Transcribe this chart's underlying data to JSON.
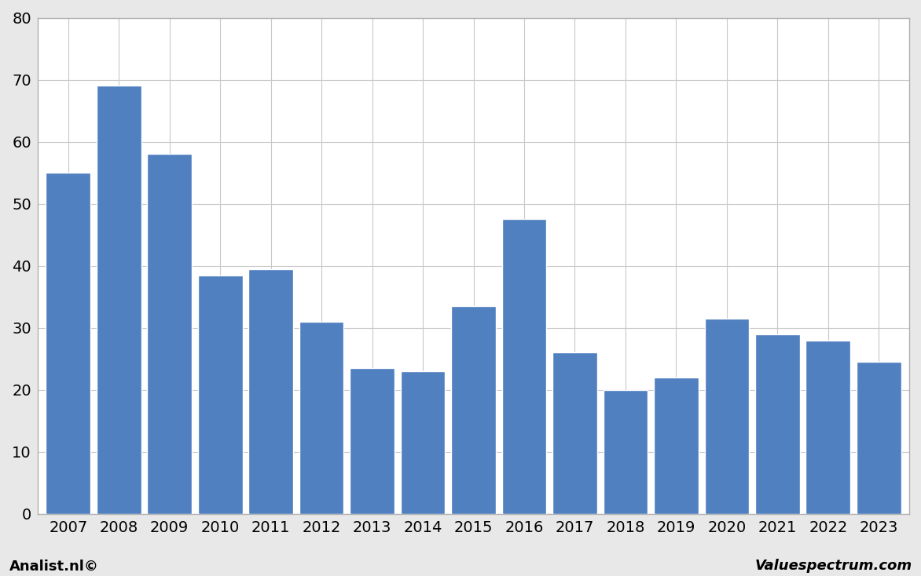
{
  "categories": [
    "2007",
    "2008",
    "2009",
    "2010",
    "2011",
    "2012",
    "2013",
    "2014",
    "2015",
    "2016",
    "2017",
    "2018",
    "2019",
    "2020",
    "2021",
    "2022",
    "2023"
  ],
  "values": [
    55.0,
    69.0,
    58.0,
    38.5,
    39.5,
    31.0,
    23.5,
    23.0,
    33.5,
    47.5,
    26.0,
    20.0,
    22.0,
    31.5,
    29.0,
    28.0,
    24.5
  ],
  "bar_color": "#5080c0",
  "background_color": "#e8e8e8",
  "plot_background": "#ffffff",
  "ylim": [
    0,
    80
  ],
  "yticks": [
    0,
    10,
    20,
    30,
    40,
    50,
    60,
    70,
    80
  ],
  "grid_color": "#c8c8c8",
  "bar_edge_color": "#ffffff",
  "footer_left": "Analist.nl©",
  "footer_right": "Valuespectrum.com",
  "footer_fontsize": 13,
  "tick_fontsize": 14,
  "bar_width": 0.88
}
